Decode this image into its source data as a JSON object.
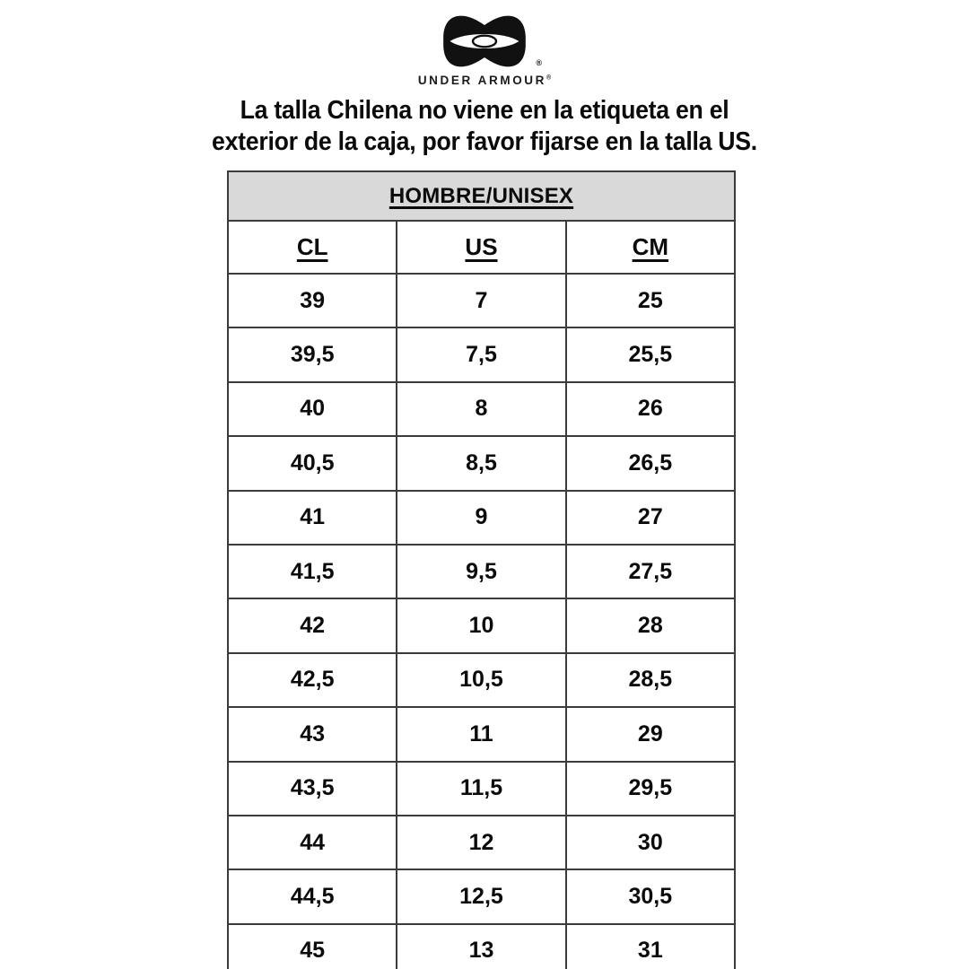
{
  "logo": {
    "brand": "Under Armour",
    "wordmark": "UNDER ARMOUR",
    "registered": "®"
  },
  "headline": {
    "line1": "La talla Chilena no viene en la etiqueta en el",
    "line2": "exterior de la caja, por favor fijarse en la talla US."
  },
  "table": {
    "title": "HOMBRE/UNISEX",
    "columns": [
      "CL",
      "US",
      "CM"
    ],
    "rows": [
      [
        "39",
        "7",
        "25"
      ],
      [
        "39,5",
        "7,5",
        "25,5"
      ],
      [
        "40",
        "8",
        "26"
      ],
      [
        "40,5",
        "8,5",
        "26,5"
      ],
      [
        "41",
        "9",
        "27"
      ],
      [
        "41,5",
        "9,5",
        "27,5"
      ],
      [
        "42",
        "10",
        "28"
      ],
      [
        "42,5",
        "10,5",
        "28,5"
      ],
      [
        "43",
        "11",
        "29"
      ],
      [
        "43,5",
        "11,5",
        "29,5"
      ],
      [
        "44",
        "12",
        "30"
      ],
      [
        "44,5",
        "12,5",
        "30,5"
      ],
      [
        "45",
        "13",
        "31"
      ]
    ],
    "header_bg": "#d9d9d9",
    "border_color": "#3b3b3b",
    "text_color": "#0b0b0b"
  }
}
